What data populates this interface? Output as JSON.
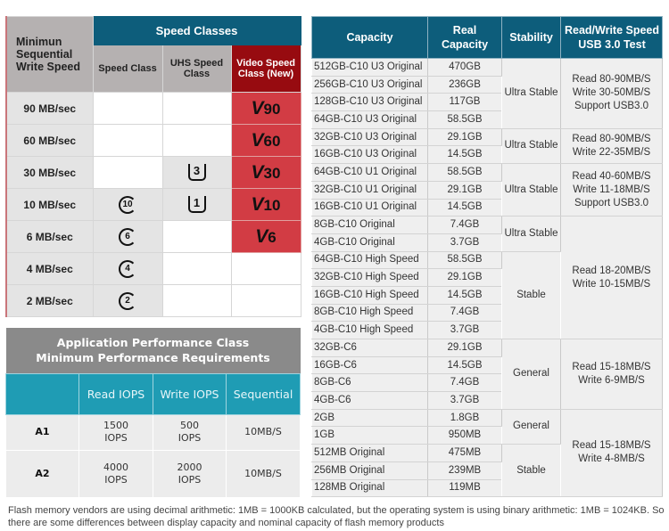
{
  "speed_table": {
    "row_header": "Minimun Sequential Write Speed",
    "group_header": "Speed Classes",
    "col_headers": [
      "Speed Class",
      "UHS Speed Class",
      "Video Speed Class (New)"
    ],
    "rows": [
      {
        "speed": "90 MB/sec",
        "sc": "",
        "uhs": "",
        "v": "90"
      },
      {
        "speed": "60 MB/sec",
        "sc": "",
        "uhs": "",
        "v": "60"
      },
      {
        "speed": "30 MB/sec",
        "sc": "",
        "uhs": "3",
        "v": "30"
      },
      {
        "speed": "10 MB/sec",
        "sc": "10",
        "uhs": "1",
        "v": "10"
      },
      {
        "speed": "6 MB/sec",
        "sc": "6",
        "uhs": "",
        "v": "6"
      },
      {
        "speed": "4 MB/sec",
        "sc": "4",
        "uhs": "",
        "v": ""
      },
      {
        "speed": "2 MB/sec",
        "sc": "2",
        "uhs": "",
        "v": ""
      }
    ],
    "colors": {
      "header": "#0d5d7b",
      "video_header": "#970b10",
      "video_cell": "#d23c44",
      "grey": "#e4e4e4"
    }
  },
  "app_table": {
    "title_line1": "Application Performance Class",
    "title_line2": "Minimum Performance Requirements",
    "col_headers": [
      "",
      "Read IOPS",
      "Write IOPS",
      "Sequential"
    ],
    "rows": [
      {
        "label": "A1",
        "read": "1500 IOPS",
        "write": "500 IOPS",
        "seq": "10MB/S"
      },
      {
        "label": "A2",
        "read": "4000 IOPS",
        "write": "2000 IOPS",
        "seq": "10MB/S"
      }
    ]
  },
  "capacity_table": {
    "col_headers": [
      "Capacity",
      "Real Capacity",
      "Stability",
      "Read/Write Speed USB 3.0 Test"
    ],
    "rows": [
      [
        "512GB-C10 U3 Original",
        "470GB"
      ],
      [
        "256GB-C10 U3 Original",
        "236GB"
      ],
      [
        "128GB-C10 U3 Original",
        "117GB"
      ],
      [
        "64GB-C10 U3 Original",
        "58.5GB"
      ],
      [
        "32GB-C10 U3 Original",
        "29.1GB"
      ],
      [
        "16GB-C10 U3 Original",
        "14.5GB"
      ],
      [
        "64GB-C10 U1 Original",
        "58.5GB"
      ],
      [
        "32GB-C10 U1 Original",
        "29.1GB"
      ],
      [
        "16GB-C10 U1 Original",
        "14.5GB"
      ],
      [
        "8GB-C10 Original",
        "7.4GB"
      ],
      [
        "4GB-C10 Original",
        "3.7GB"
      ],
      [
        "64GB-C10 High Speed",
        "58.5GB"
      ],
      [
        "32GB-C10 High Speed",
        "29.1GB"
      ],
      [
        "16GB-C10 High Speed",
        "14.5GB"
      ],
      [
        "8GB-C10 High Speed",
        "7.4GB"
      ],
      [
        "4GB-C10 High Speed",
        "3.7GB"
      ],
      [
        "32GB-C6",
        "29.1GB"
      ],
      [
        "16GB-C6",
        "14.5GB"
      ],
      [
        "8GB-C6",
        "7.4GB"
      ],
      [
        "4GB-C6",
        "3.7GB"
      ],
      [
        "2GB",
        "1.8GB"
      ],
      [
        "1GB",
        "950MB"
      ],
      [
        "512MB Original",
        "475MB"
      ],
      [
        "256MB Original",
        "239MB"
      ],
      [
        "128MB Original",
        "119MB"
      ]
    ],
    "stability_groups": [
      {
        "start": 0,
        "span": 4,
        "text": "Ultra Stable"
      },
      {
        "start": 4,
        "span": 2,
        "text": "Ultra Stable"
      },
      {
        "start": 6,
        "span": 3,
        "text": "Ultra Stable"
      },
      {
        "start": 9,
        "span": 2,
        "text": "Ultra Stable"
      },
      {
        "start": 11,
        "span": 5,
        "text": "Stable"
      },
      {
        "start": 16,
        "span": 4,
        "text": "General"
      },
      {
        "start": 20,
        "span": 2,
        "text": "General"
      },
      {
        "start": 22,
        "span": 3,
        "text": "Stable"
      }
    ],
    "speed_groups": [
      {
        "start": 0,
        "span": 4,
        "lines": [
          "Read 80-90MB/S",
          "Write 30-50MB/S",
          "Support USB3.0"
        ]
      },
      {
        "start": 4,
        "span": 2,
        "lines": [
          "Read 80-90MB/S",
          "Write 22-35MB/S"
        ]
      },
      {
        "start": 6,
        "span": 3,
        "lines": [
          "Read 40-60MB/S",
          "Write 11-18MB/S",
          "Support USB3.0"
        ]
      },
      {
        "start": 9,
        "span": 7,
        "lines": [
          "Read 18-20MB/S",
          "Write 10-15MB/S"
        ]
      },
      {
        "start": 16,
        "span": 4,
        "lines": [
          "Read 15-18MB/S",
          "Write 6-9MB/S"
        ]
      },
      {
        "start": 20,
        "span": 5,
        "lines": [
          "Read 15-18MB/S",
          "Write 4-8MB/S"
        ]
      }
    ]
  },
  "footnote": "Flash memory vendors are using decimal arithmetic: 1MB = 1000KB calculated, but the operating system is using binary arithmetic: 1MB = 1024KB. So there are some differences between display capacity and nominal capacity of flash memory products"
}
